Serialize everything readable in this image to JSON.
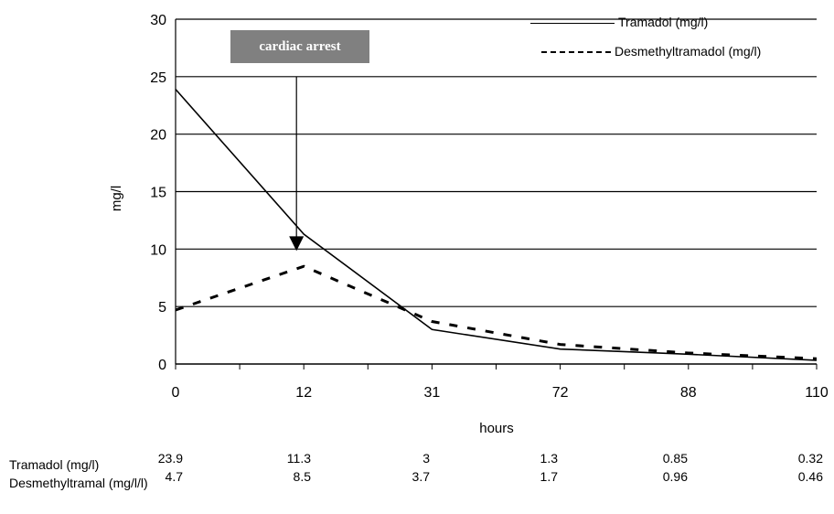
{
  "chart_data": {
    "type": "line",
    "title": "",
    "xlabel": "hours",
    "ylabel": "mg/l",
    "categories": [
      "0",
      "12",
      "31",
      "72",
      "88",
      "110"
    ],
    "ylim": [
      0,
      30
    ],
    "yticks": [
      0,
      5,
      10,
      15,
      20,
      25,
      30
    ],
    "grid": "horizontal",
    "legend_position": "top-right",
    "series": [
      {
        "name": "Tramadol (mg/l)",
        "values": [
          23.9,
          11.3,
          3,
          1.3,
          0.85,
          0.32
        ],
        "style": "solid",
        "color": "#000000"
      },
      {
        "name": "Desmethyltramadol (mg/l)",
        "values": [
          4.7,
          8.5,
          3.7,
          1.7,
          0.96,
          0.46
        ],
        "style": "dashed",
        "color": "#000000"
      }
    ],
    "annotations": [
      {
        "text": "cardiac arrest",
        "x_category": "12",
        "arrow_to_y": 10
      }
    ]
  },
  "table": {
    "rows": [
      {
        "label": "Tramadol (mg/l)",
        "values": [
          "23.9",
          "11.3",
          "3",
          "1.3",
          "0.85",
          "0.32"
        ]
      },
      {
        "label": "Desmethyltramal (mg/l/l)",
        "values": [
          "4.7",
          "8.5",
          "3.7",
          "1.7",
          "0.96",
          "0.46"
        ]
      }
    ]
  }
}
